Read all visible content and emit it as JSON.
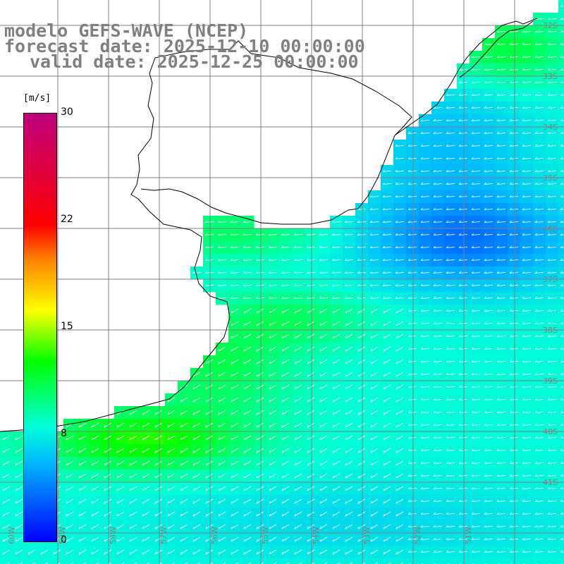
{
  "header": {
    "model_line": "modelo GEFS-WAVE (NCEP)",
    "forecast_line": "forecast date: 2025-12-10 00:00:00",
    "valid_line": "valid date: 2025-12-25 00:00:00"
  },
  "colorbar": {
    "units": "[m/s]",
    "ticks": [
      "30",
      "22",
      "15",
      "8",
      "0"
    ],
    "colors": [
      "#c0007f",
      "#ff0000",
      "#ff8000",
      "#ffff00",
      "#00ff00",
      "#00ffd8",
      "#00b4ff",
      "#0000ff"
    ]
  },
  "grid": {
    "right_labels": [
      "32S",
      "33S",
      "34S",
      "35S",
      "36S",
      "37S",
      "38S",
      "39S",
      "40S",
      "41S"
    ],
    "bottom_labels": [
      "60W",
      "59W",
      "58W",
      "57W",
      "56W",
      "55W",
      "54W",
      "53W",
      "52W",
      "51W"
    ]
  },
  "colors": {
    "land": "#ffffff",
    "coast": "#000000",
    "gridline": "#808080",
    "arrow": "#ffffff",
    "title": "#808080"
  }
}
